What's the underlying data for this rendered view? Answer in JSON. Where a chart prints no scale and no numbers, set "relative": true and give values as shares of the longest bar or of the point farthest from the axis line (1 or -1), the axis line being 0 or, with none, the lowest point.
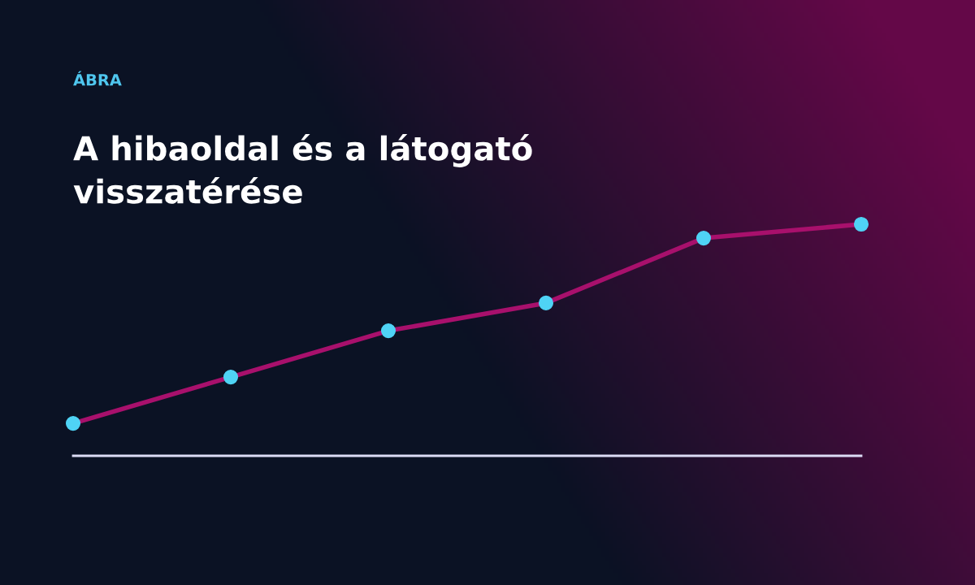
{
  "chart_data": {
    "type": "line",
    "relative": true,
    "subtitle": "ÁBRA",
    "title": "A hibaoldal és a látogató\nvisszatérése",
    "categories": [
      null,
      null,
      null,
      null,
      null,
      null
    ],
    "series": [
      {
        "color": "#a8106c",
        "values": [
          0.14,
          0.34,
          0.54,
          0.66,
          0.94,
          1.0
        ]
      }
    ],
    "marker": "circle",
    "line_style": "solid",
    "grid": false,
    "legend": false
  }
}
